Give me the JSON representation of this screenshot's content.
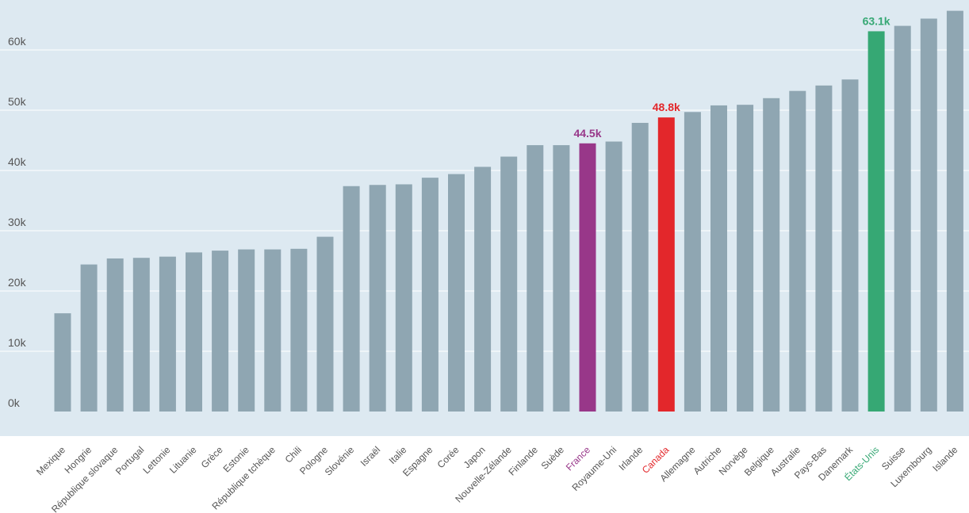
{
  "chart_data": {
    "type": "bar",
    "title": "",
    "xlabel": "",
    "ylabel": "",
    "ylim": [
      0,
      66000
    ],
    "grid": true,
    "y_ticks": [
      {
        "value": 0,
        "label": "0k"
      },
      {
        "value": 10000,
        "label": "10k"
      },
      {
        "value": 20000,
        "label": "20k"
      },
      {
        "value": 30000,
        "label": "30k"
      },
      {
        "value": 40000,
        "label": "40k"
      },
      {
        "value": 50000,
        "label": "50k"
      },
      {
        "value": 60000,
        "label": "60k"
      }
    ],
    "categories": [
      "Mexique",
      "Hongrie",
      "République slovaque",
      "Portugal",
      "Lettonie",
      "Lituanie",
      "Grèce",
      "Estonie",
      "République tchèque",
      "Chili",
      "Pologne",
      "Slovénie",
      "Israël",
      "Italie",
      "Espagne",
      "Corée",
      "Japon",
      "Nouvelle-Zélande",
      "Finlande",
      "Suède",
      "France",
      "Royaume-Uni",
      "Irlande",
      "Canada",
      "Allemagne",
      "Autriche",
      "Norvège",
      "Belgique",
      "Australie",
      "Pays-Bas",
      "Danemark",
      "États-Unis",
      "Suisse",
      "Luxembourg",
      "Islande"
    ],
    "values": [
      16300,
      24400,
      25400,
      25500,
      25700,
      26400,
      26700,
      26900,
      26900,
      27000,
      29000,
      37400,
      37600,
      37700,
      38800,
      39400,
      40600,
      42300,
      44200,
      44200,
      44500,
      44800,
      47900,
      48800,
      49700,
      50800,
      50900,
      52000,
      53200,
      54100,
      55100,
      63100,
      64000,
      65200,
      66500
    ],
    "highlights": [
      {
        "category": "France",
        "label": "44.5k",
        "color": "#983789"
      },
      {
        "category": "Canada",
        "label": "48.8k",
        "color": "#e3272b"
      },
      {
        "category": "États-Unis",
        "label": "63.1k",
        "color": "#36a874"
      }
    ],
    "default_bar_color": "#8fa6b2",
    "default_label_color": "#555555",
    "background_color": "#dde9f1"
  }
}
